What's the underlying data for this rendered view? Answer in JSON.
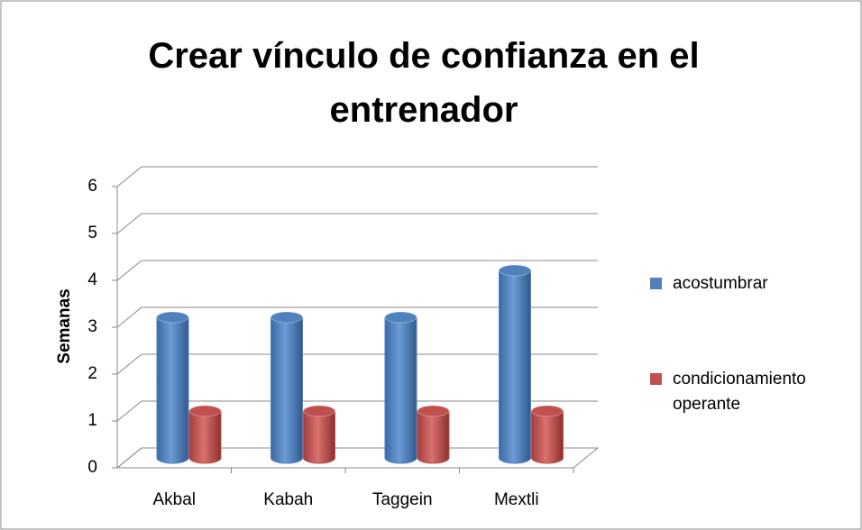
{
  "chart_data": {
    "type": "bar3d",
    "title": "Crear vínculo de confianza en el entrenador",
    "y_label": "Semanas",
    "categories": [
      "Akbal",
      "Kabah",
      "Taggein",
      "Mextli"
    ],
    "series": [
      {
        "name": "acostumbrar",
        "color": "#4f81bd",
        "values": [
          3,
          3,
          3,
          4
        ]
      },
      {
        "name": "condicionamiento operante",
        "color": "#c0504d",
        "values": [
          1,
          1,
          1,
          1
        ]
      }
    ],
    "ylim": [
      0,
      6
    ],
    "yticks": [
      0,
      1,
      2,
      3,
      4,
      5,
      6
    ],
    "grid": true,
    "legend": "right"
  }
}
